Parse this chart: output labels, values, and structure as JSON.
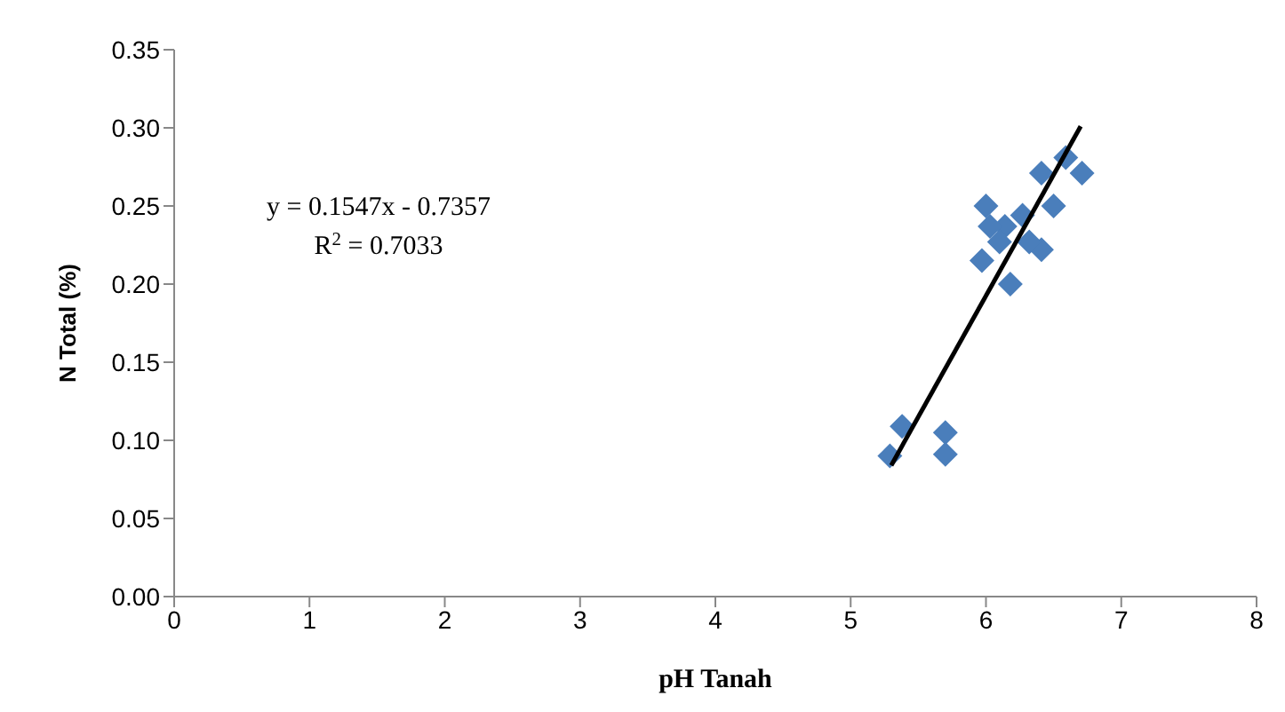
{
  "chart_data": {
    "type": "scatter",
    "xlabel": "pH Tanah",
    "ylabel": "N Total (%)",
    "xlim": [
      0,
      8
    ],
    "xticks": [
      0,
      1,
      2,
      3,
      4,
      5,
      6,
      7,
      8
    ],
    "ylim": [
      0,
      0.35
    ],
    "yticks": [
      {
        "value": 0,
        "label": "0.00"
      },
      {
        "value": 0.05,
        "label": "0.05"
      },
      {
        "value": 0.1,
        "label": "0.10"
      },
      {
        "value": 0.15,
        "label": "0.15"
      },
      {
        "value": 0.2,
        "label": "0.20"
      },
      {
        "value": 0.25,
        "label": "0.25"
      },
      {
        "value": 0.3,
        "label": "0.30"
      },
      {
        "value": 0.35,
        "label": "0.35"
      }
    ],
    "grid": false,
    "legend": false,
    "marker": "diamond",
    "annotations": [
      "y = 0.1547x - 0.7357",
      "R$^{2}$ = 0.7033"
    ],
    "series": [
      {
        "color": "#4a7ebb",
        "x": [
          5.29,
          5.38,
          5.7,
          5.7,
          6.0,
          5.97,
          6.18,
          6.41,
          6.5,
          6.59,
          6.71,
          6.41,
          6.14,
          6.27,
          6.03,
          6.32,
          6.1
        ],
        "values": [
          0.09,
          0.109,
          0.105,
          0.091,
          0.25,
          0.215,
          0.2,
          0.271,
          0.25,
          0.281,
          0.271,
          0.222,
          0.237,
          0.244,
          0.237,
          0.227,
          0.227
        ]
      },
      {
        "type": "line",
        "color": "#000000",
        "line_style": "solid",
        "marker": "none",
        "x": [
          5.3,
          6.7
        ],
        "values": [
          0.084,
          0.301
        ]
      }
    ]
  }
}
